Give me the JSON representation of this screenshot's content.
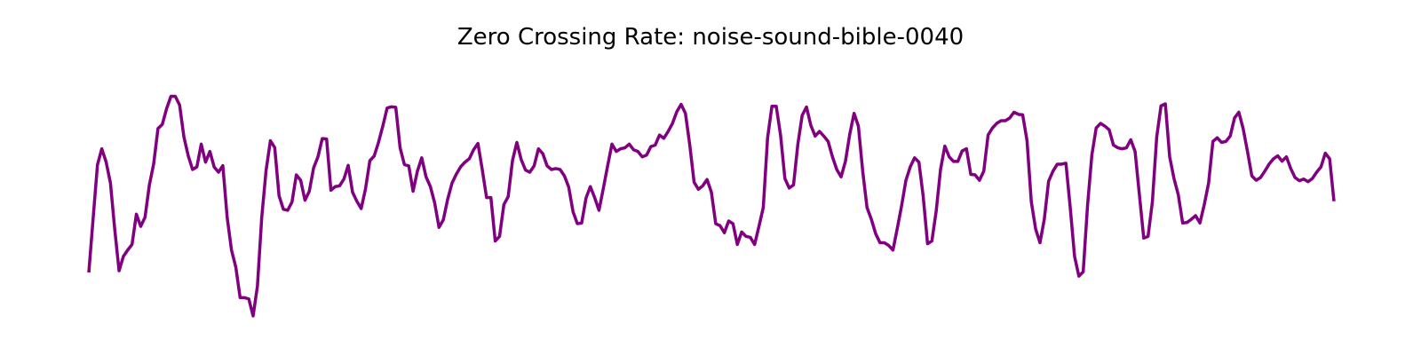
{
  "chart_data": {
    "type": "line",
    "title": "Zero Crossing Rate: noise-sound-bible-0040",
    "xlabel": "",
    "ylabel": "",
    "axes_visible": false,
    "grid": false,
    "legend": "none",
    "ylim": [
      0.0,
      1.0
    ],
    "series": [
      {
        "color": "#800080",
        "values": [
          0.178,
          0.4,
          0.619,
          0.685,
          0.631,
          0.545,
          0.354,
          0.185,
          0.244,
          0.27,
          0.293,
          0.417,
          0.367,
          0.404,
          0.536,
          0.623,
          0.768,
          0.785,
          0.85,
          0.9,
          0.9,
          0.864,
          0.733,
          0.656,
          0.6,
          0.611,
          0.704,
          0.63,
          0.674,
          0.61,
          0.589,
          0.616,
          0.404,
          0.27,
          0.2,
          0.075,
          0.075,
          0.07,
          0.0,
          0.122,
          0.404,
          0.596,
          0.718,
          0.69,
          0.493,
          0.437,
          0.433,
          0.467,
          0.578,
          0.556,
          0.474,
          0.511,
          0.607,
          0.652,
          0.727,
          0.725,
          0.515,
          0.53,
          0.533,
          0.561,
          0.617,
          0.507,
          0.47,
          0.44,
          0.521,
          0.636,
          0.655,
          0.711,
          0.778,
          0.852,
          0.857,
          0.855,
          0.689,
          0.62,
          0.615,
          0.511,
          0.593,
          0.648,
          0.57,
          0.53,
          0.463,
          0.363,
          0.394,
          0.478,
          0.544,
          0.581,
          0.611,
          0.63,
          0.644,
          0.681,
          0.707,
          0.6,
          0.485,
          0.485,
          0.307,
          0.326,
          0.456,
          0.489,
          0.637,
          0.711,
          0.641,
          0.598,
          0.589,
          0.615,
          0.685,
          0.665,
          0.615,
          0.6,
          0.604,
          0.6,
          0.574,
          0.528,
          0.427,
          0.378,
          0.381,
          0.483,
          0.53,
          0.485,
          0.433,
          0.522,
          0.615,
          0.704,
          0.674,
          0.685,
          0.689,
          0.704,
          0.681,
          0.674,
          0.652,
          0.659,
          0.694,
          0.7,
          0.741,
          0.728,
          0.756,
          0.789,
          0.837,
          0.867,
          0.83,
          0.7,
          0.548,
          0.519,
          0.533,
          0.559,
          0.507,
          0.378,
          0.37,
          0.341,
          0.389,
          0.378,
          0.293,
          0.344,
          0.326,
          0.322,
          0.293,
          0.367,
          0.444,
          0.73,
          0.859,
          0.859,
          0.741,
          0.563,
          0.524,
          0.537,
          0.704,
          0.822,
          0.856,
          0.781,
          0.737,
          0.756,
          0.737,
          0.715,
          0.652,
          0.6,
          0.57,
          0.633,
          0.744,
          0.83,
          0.778,
          0.593,
          0.444,
          0.396,
          0.337,
          0.3,
          0.3,
          0.289,
          0.27,
          0.359,
          0.452,
          0.556,
          0.611,
          0.648,
          0.63,
          0.489,
          0.296,
          0.307,
          0.43,
          0.6,
          0.696,
          0.652,
          0.633,
          0.633,
          0.676,
          0.685,
          0.58,
          0.578,
          0.556,
          0.593,
          0.741,
          0.77,
          0.789,
          0.8,
          0.8,
          0.811,
          0.835,
          0.826,
          0.824,
          0.719,
          0.467,
          0.356,
          0.3,
          0.396,
          0.552,
          0.593,
          0.622,
          0.622,
          0.626,
          0.444,
          0.244,
          0.163,
          0.181,
          0.452,
          0.659,
          0.77,
          0.789,
          0.778,
          0.763,
          0.7,
          0.689,
          0.685,
          0.689,
          0.722,
          0.674,
          0.496,
          0.319,
          0.326,
          0.467,
          0.733,
          0.861,
          0.869,
          0.652,
          0.563,
          0.496,
          0.381,
          0.383,
          0.396,
          0.411,
          0.381,
          0.456,
          0.544,
          0.715,
          0.73,
          0.711,
          0.715,
          0.737,
          0.811,
          0.835,
          0.767,
          0.674,
          0.574,
          0.556,
          0.567,
          0.593,
          0.622,
          0.644,
          0.656,
          0.634,
          0.652,
          0.604,
          0.567,
          0.554,
          0.561,
          0.55,
          0.563,
          0.589,
          0.611,
          0.667,
          0.644,
          0.47
        ]
      }
    ]
  }
}
